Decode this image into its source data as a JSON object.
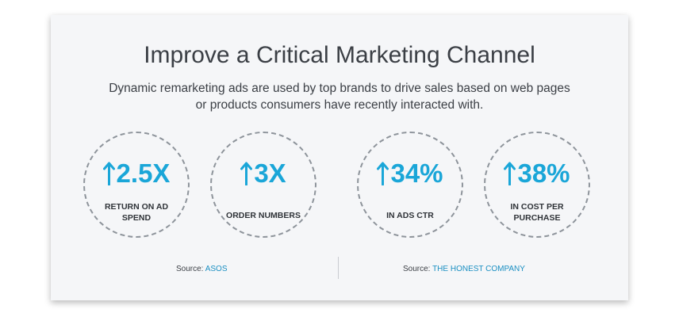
{
  "title": "Improve a Critical Marketing Channel",
  "subtitle": "Dynamic remarketing ads are used by top brands to drive sales based on web pages or products consumers have recently interacted with.",
  "stats": [
    {
      "value": "2.5X",
      "label": "RETURN ON AD SPEND"
    },
    {
      "value": "3X",
      "label": "ORDER NUMBERS"
    },
    {
      "value": "34%",
      "label": "IN ADS CTR"
    },
    {
      "value": "38%",
      "label": "IN COST PER PURCHASE"
    }
  ],
  "sources": [
    {
      "prefix": "Source:",
      "name": "ASOS"
    },
    {
      "prefix": "Source:",
      "name": "THE HONEST COMPANY"
    }
  ],
  "icon": "arrow-up-icon",
  "colors": {
    "accent": "#1aa6d8",
    "link": "#1a8fc2",
    "text": "#3b3f45"
  }
}
